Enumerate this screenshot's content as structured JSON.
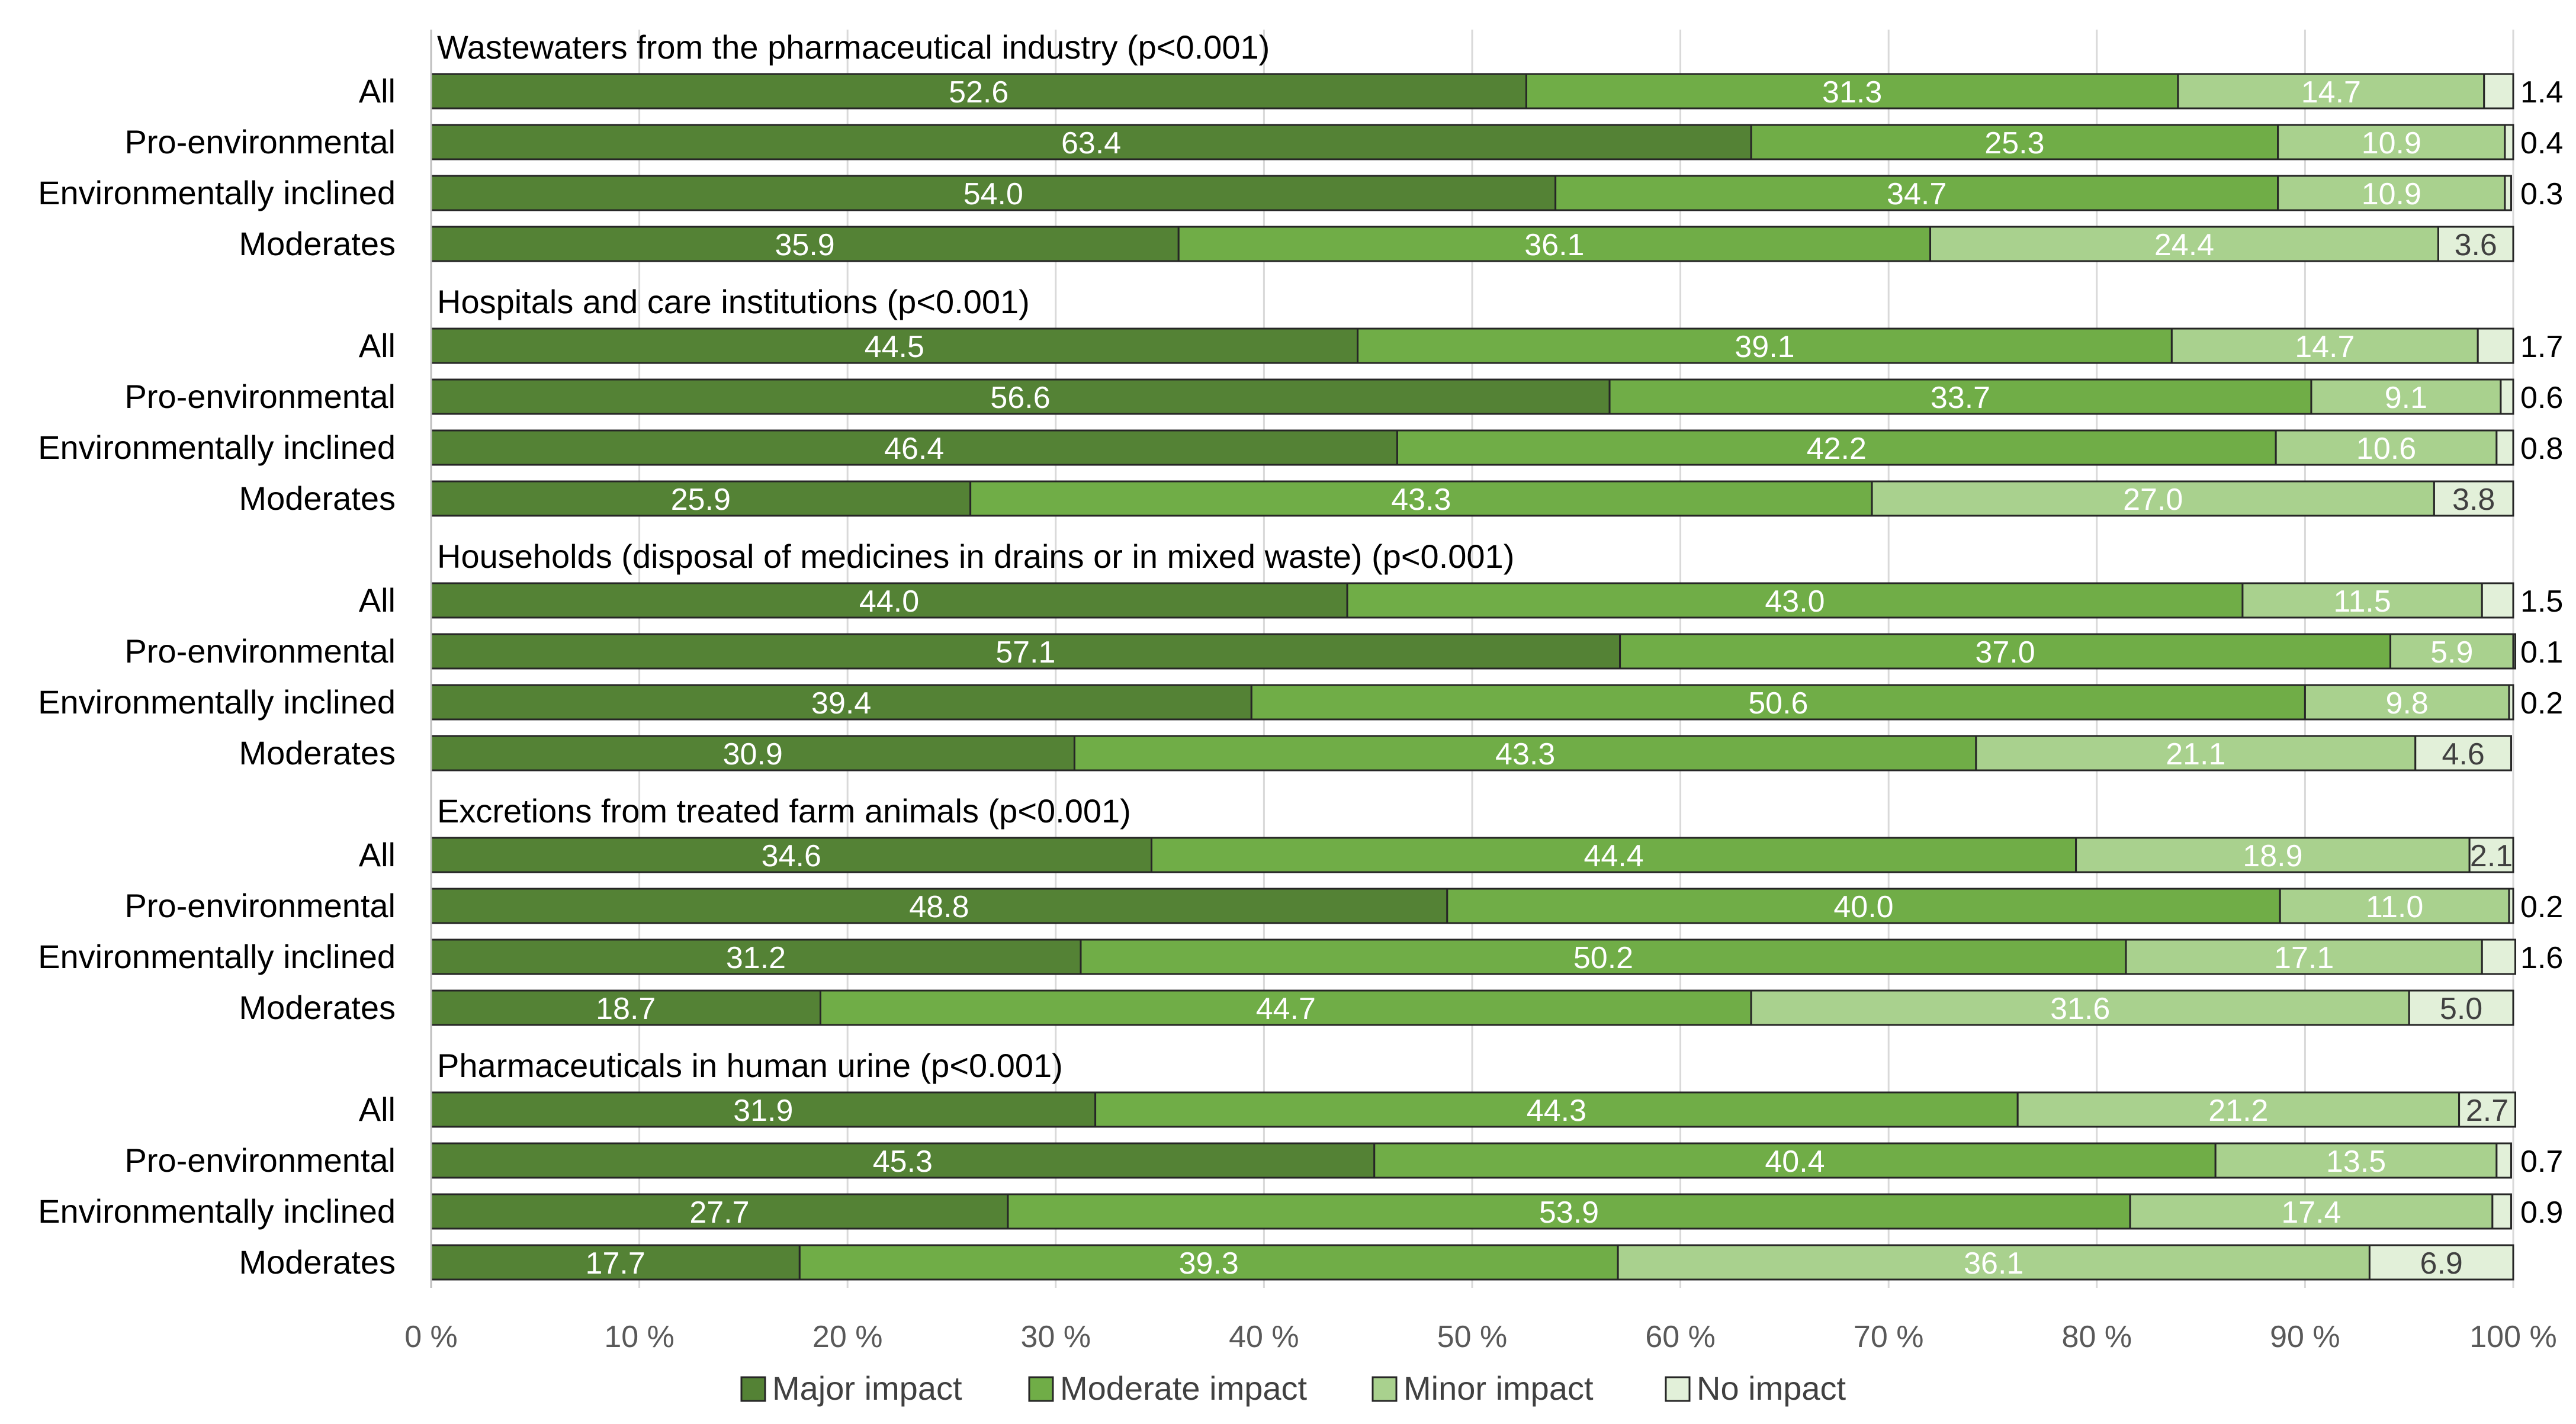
{
  "chart_data": {
    "type": "bar",
    "orientation": "horizontal",
    "stacked": "percent",
    "title": "",
    "xlabel": "",
    "ylabel": "",
    "xlim": [
      0,
      100
    ],
    "x_ticks": [
      "0 %",
      "10 %",
      "20 %",
      "30 %",
      "40 %",
      "50 %",
      "60 %",
      "70 %",
      "80 %",
      "90 %",
      "100 %"
    ],
    "grid": true,
    "legend_position": "bottom",
    "series": [
      {
        "name": "Major impact",
        "color": "#548235"
      },
      {
        "name": "Moderate impact",
        "color": "#70ad47"
      },
      {
        "name": "Minor impact",
        "color": "#a9d18e"
      },
      {
        "name": "No impact",
        "color": "#e2f0d9"
      }
    ],
    "groups": [
      {
        "title": "Wastewaters from the pharmaceutical industry (p<0.001)",
        "rows": [
          {
            "label": "All",
            "values": [
              52.6,
              31.3,
              14.7,
              1.4
            ],
            "labels": [
              "52.6",
              "31.3",
              "14.7",
              "1.4"
            ]
          },
          {
            "label": "Pro-environmental",
            "values": [
              63.4,
              25.3,
              10.9,
              0.4
            ],
            "labels": [
              "63.4",
              "25.3",
              "10.9",
              "0.4"
            ]
          },
          {
            "label": "Environmentally inclined",
            "values": [
              54.0,
              34.7,
              10.9,
              0.3
            ],
            "labels": [
              "54.0",
              "34.7",
              "10.9",
              "0.3"
            ]
          },
          {
            "label": "Moderates",
            "values": [
              35.9,
              36.1,
              24.4,
              3.6
            ],
            "labels": [
              "35.9",
              "36.1",
              "24.4",
              "3.6"
            ]
          }
        ]
      },
      {
        "title": "Hospitals and care institutions (p<0.001)",
        "rows": [
          {
            "label": "All",
            "values": [
              44.5,
              39.1,
              14.7,
              1.7
            ],
            "labels": [
              "44.5",
              "39.1",
              "14.7",
              "1.7"
            ]
          },
          {
            "label": "Pro-environmental",
            "values": [
              56.6,
              33.7,
              9.1,
              0.6
            ],
            "labels": [
              "56.6",
              "33.7",
              "9.1",
              "0.6"
            ]
          },
          {
            "label": "Environmentally inclined",
            "values": [
              46.4,
              42.2,
              10.6,
              0.8
            ],
            "labels": [
              "46.4",
              "42.2",
              "10.6",
              "0.8"
            ]
          },
          {
            "label": "Moderates",
            "values": [
              25.9,
              43.3,
              27.0,
              3.8
            ],
            "labels": [
              "25.9",
              "43.3",
              "27.0",
              "3.8"
            ]
          }
        ]
      },
      {
        "title": "Households (disposal of medicines in drains or in mixed waste) (p<0.001)",
        "rows": [
          {
            "label": "All",
            "values": [
              44.0,
              43.0,
              11.5,
              1.5
            ],
            "labels": [
              "44.0",
              "43.0",
              "11.5",
              "1.5"
            ]
          },
          {
            "label": "Pro-environmental",
            "values": [
              57.1,
              37.0,
              5.9,
              0.1
            ],
            "labels": [
              "57.1",
              "37.0",
              "5.9",
              "0.1"
            ]
          },
          {
            "label": "Environmentally inclined",
            "values": [
              39.4,
              50.6,
              9.8,
              0.2
            ],
            "labels": [
              "39.4",
              "50.6",
              "9.8",
              "0.2"
            ]
          },
          {
            "label": "Moderates",
            "values": [
              30.9,
              43.3,
              21.1,
              4.6
            ],
            "labels": [
              "30.9",
              "43.3",
              "21.1",
              "4.6"
            ]
          }
        ]
      },
      {
        "title": "Excretions from treated farm animals (p<0.001)",
        "rows": [
          {
            "label": "All",
            "values": [
              34.6,
              44.4,
              18.9,
              2.1
            ],
            "labels": [
              "34.6",
              "44.4",
              "18.9",
              "2.1"
            ]
          },
          {
            "label": "Pro-environmental",
            "values": [
              48.8,
              40.0,
              11.0,
              0.2
            ],
            "labels": [
              "48.8",
              "40.0",
              "11.0",
              "0.2"
            ]
          },
          {
            "label": "Environmentally inclined",
            "values": [
              31.2,
              50.2,
              17.1,
              1.6
            ],
            "labels": [
              "31.2",
              "50.2",
              "17.1",
              "1.6"
            ]
          },
          {
            "label": "Moderates",
            "values": [
              18.7,
              44.7,
              31.6,
              5.0
            ],
            "labels": [
              "18.7",
              "44.7",
              "31.6",
              "5.0"
            ]
          }
        ]
      },
      {
        "title": "Pharmaceuticals in human urine (p<0.001)",
        "rows": [
          {
            "label": "All",
            "values": [
              31.9,
              44.3,
              21.2,
              2.7
            ],
            "labels": [
              "31.9",
              "44.3",
              "21.2",
              "2.7"
            ]
          },
          {
            "label": "Pro-environmental",
            "values": [
              45.3,
              40.4,
              13.5,
              0.7
            ],
            "labels": [
              "45.3",
              "40.4",
              "13.5",
              "0.7"
            ]
          },
          {
            "label": "Environmentally inclined",
            "values": [
              27.7,
              53.9,
              17.4,
              0.9
            ],
            "labels": [
              "27.7",
              "53.9",
              "17.4",
              "0.9"
            ]
          },
          {
            "label": "Moderates",
            "values": [
              17.7,
              39.3,
              36.1,
              6.9
            ],
            "labels": [
              "17.7",
              "39.3",
              "36.1",
              "6.9"
            ]
          }
        ]
      }
    ]
  }
}
